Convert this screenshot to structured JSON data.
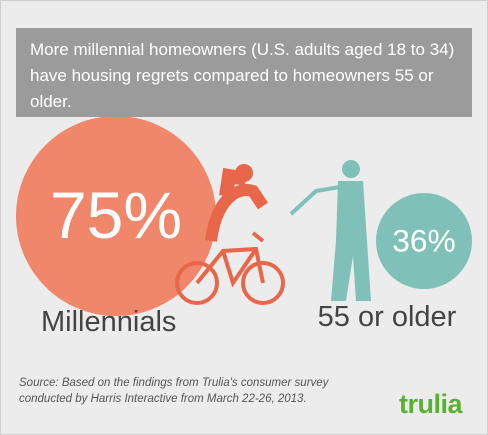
{
  "chart_data": {
    "type": "circle",
    "title": "More millennial homeowners (U.S. adults aged 18 to 34) have housing regrets compared to homeowners 55 or older.",
    "categories": [
      "Millennials",
      "55 or older"
    ],
    "values": [
      75,
      36
    ],
    "value_labels": [
      "75%",
      "36%"
    ],
    "colors": [
      "#f0876a",
      "#7fc1b8"
    ],
    "source": "Source: Based on the findings from Trulia's consumer survey conducted by Harris Interactive from March 22-26, 2013.",
    "logo": "trulia"
  }
}
